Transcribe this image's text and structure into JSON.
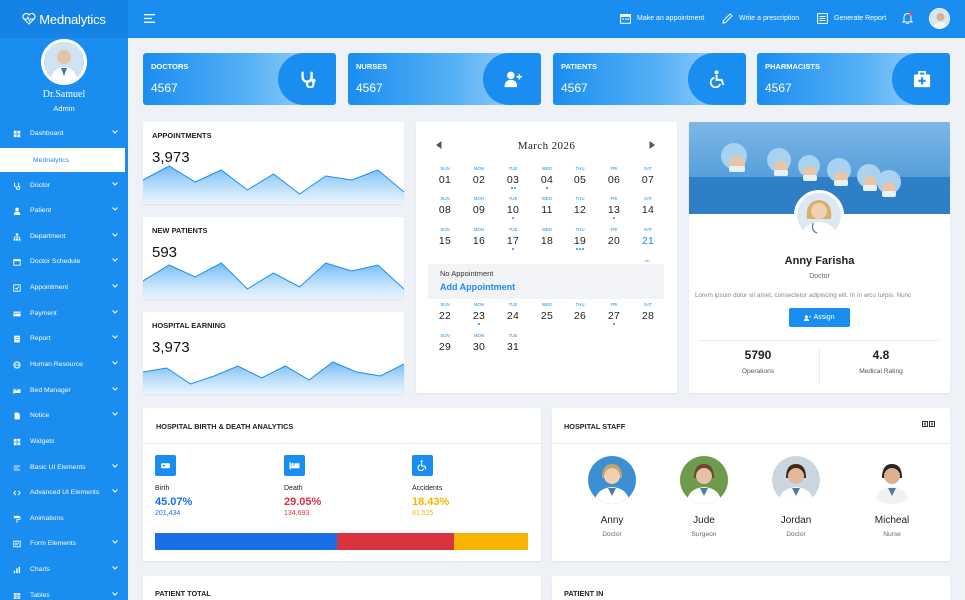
{
  "brand": {
    "name": "Mednalytics"
  },
  "user": {
    "name": "Dr.Samuel",
    "role": "Admin"
  },
  "sidebar": {
    "items": [
      {
        "label": "Dashboard",
        "icon": "grid-icon"
      },
      {
        "label": "Doctor",
        "icon": "stethoscope-icon"
      },
      {
        "label": "Patient",
        "icon": "user-icon"
      },
      {
        "label": "Department",
        "icon": "sitemap-icon"
      },
      {
        "label": "Doctor Schedule",
        "icon": "calendar-icon"
      },
      {
        "label": "Appointment",
        "icon": "check-square-icon"
      },
      {
        "label": "Payment",
        "icon": "credit-card-icon"
      },
      {
        "label": "Report",
        "icon": "report-icon"
      },
      {
        "label": "Human Resource",
        "icon": "globe-icon"
      },
      {
        "label": "Bed Manager",
        "icon": "bed-icon"
      },
      {
        "label": "Notice",
        "icon": "file-icon"
      },
      {
        "label": "Widgets",
        "icon": "widgets-icon"
      },
      {
        "label": "Basic UI Elements",
        "icon": "list-icon"
      },
      {
        "label": "Advanced UI Elements",
        "icon": "code-icon"
      },
      {
        "label": "Animations",
        "icon": "paint-roller-icon"
      },
      {
        "label": "Form Elements",
        "icon": "form-icon"
      },
      {
        "label": "Charts",
        "icon": "chart-icon"
      },
      {
        "label": "Tables",
        "icon": "table-icon"
      }
    ],
    "sub_item": "Mednalytics"
  },
  "topbar": {
    "make_appointment": "Make an appointment",
    "write_prescription": "Write a prescription",
    "generate_report": "Generate Report"
  },
  "stats": [
    {
      "label": "DOCTORS",
      "value": "4567",
      "icon": "stethoscope-icon"
    },
    {
      "label": "NURSES",
      "value": "4567",
      "icon": "user-plus-icon"
    },
    {
      "label": "PATIENTS",
      "value": "4567",
      "icon": "wheelchair-icon"
    },
    {
      "label": "PHARMACISTS",
      "value": "4567",
      "icon": "medkit-icon"
    }
  ],
  "mini_cards": [
    {
      "title": "APPOINTMENTS",
      "value": "3,973",
      "spark": [
        24,
        38,
        22,
        34,
        14,
        30,
        10,
        28,
        24,
        34,
        12
      ]
    },
    {
      "title": "NEW PATIENTS",
      "value": "593",
      "spark": [
        18,
        34,
        22,
        36,
        10,
        26,
        12,
        36,
        28,
        34,
        10
      ]
    },
    {
      "title": "HOSPITAL EARNING",
      "value": "3,973",
      "spark": [
        22,
        26,
        10,
        18,
        28,
        16,
        28,
        14,
        32,
        22,
        18,
        30
      ]
    }
  ],
  "calendar": {
    "month": "March 2026",
    "weekdays": [
      "SUN",
      "MON",
      "TUE",
      "WED",
      "THU",
      "FRI",
      "SAT"
    ],
    "weeks": [
      [
        "01",
        "02",
        "03",
        "04",
        "05",
        "06",
        "07"
      ],
      [
        "08",
        "09",
        "10",
        "11",
        "12",
        "13",
        "14"
      ],
      [
        "15",
        "16",
        "17",
        "18",
        "19",
        "20",
        "21"
      ],
      [
        "22",
        "23",
        "24",
        "25",
        "26",
        "27",
        "28"
      ],
      [
        "29",
        "30",
        "31",
        "",
        "",
        "",
        ""
      ]
    ],
    "dots": {
      "03": 2,
      "04": 1,
      "10": 1,
      "13": 1,
      "17": 1,
      "19": 3,
      "23": 1,
      "27": 1
    },
    "highlight": "21",
    "no_appointment": "No Appointment",
    "add_appointment": "Add Appointment"
  },
  "profile": {
    "name": "Anny Farisha",
    "role": "Doctor",
    "bio": "Lorem ipsum dolor sit amet, consectetur adipiscing elit. In in arcu turpis. Nunc",
    "assign_label": "Assign",
    "operations_value": "5790",
    "operations_label": "Operations",
    "rating_value": "4.8",
    "rating_label": "Medical Rating"
  },
  "analytics": {
    "title": "HOSPITAL BIRTH & DEATH ANALYTICS",
    "items": [
      {
        "label": "Birth",
        "percent": "45.07%",
        "count": "201,434",
        "color": "#1a6fe8",
        "icon": "baby-icon"
      },
      {
        "label": "Death",
        "percent": "29.05%",
        "count": "134,693",
        "color": "#d9333f",
        "icon": "bed-icon"
      },
      {
        "label": "Accidents",
        "percent": "18.43%",
        "count": "81,525",
        "color": "#f6b400",
        "icon": "wheelchair-icon"
      }
    ],
    "bar_shares": [
      45.07,
      29.05,
      18.43
    ]
  },
  "staff": {
    "title": "HOSPITAL STAFF",
    "members": [
      {
        "name": "Anny",
        "role": "Doctor"
      },
      {
        "name": "Jude",
        "role": "Surgeon"
      },
      {
        "name": "Jordan",
        "role": "Doctor"
      },
      {
        "name": "Micheal",
        "role": "Nurse"
      }
    ]
  },
  "bottom": {
    "patient_total": "PATIENT TOTAL",
    "patient_in": "PATIENT IN"
  },
  "colors": {
    "primary": "#1a8df0",
    "birth": "#1a6fe8",
    "death": "#d9333f",
    "accidents": "#f6b400"
  }
}
